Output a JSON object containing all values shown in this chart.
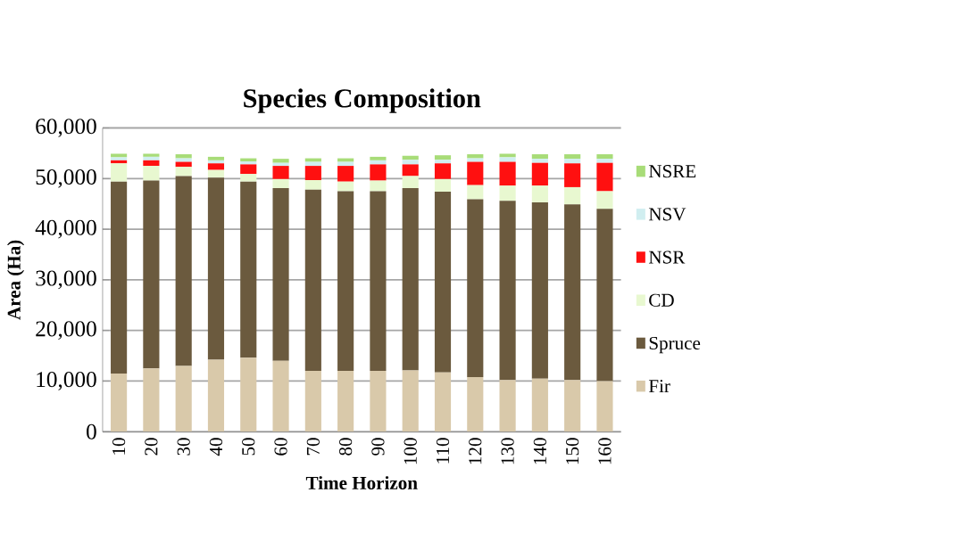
{
  "chart_data": {
    "type": "bar",
    "stacked": true,
    "title": "Species Composition",
    "xlabel": "Time Horizon",
    "ylabel": "Area (Ha)",
    "categories": [
      "10",
      "20",
      "30",
      "40",
      "50",
      "60",
      "70",
      "80",
      "90",
      "100",
      "110",
      "120",
      "130",
      "140",
      "150",
      "160"
    ],
    "series": [
      {
        "name": "Fir",
        "color": "#d9c9aa",
        "values": [
          11500,
          12500,
          13000,
          14200,
          14600,
          14000,
          12000,
          12000,
          12000,
          12100,
          11700,
          10800,
          10200,
          10500,
          10200,
          10000
        ]
      },
      {
        "name": "Spruce",
        "color": "#6b5a3e",
        "values": [
          37900,
          37100,
          37500,
          36000,
          34800,
          34100,
          35800,
          35500,
          35500,
          36000,
          35700,
          35100,
          35400,
          34800,
          34700,
          34000
        ]
      },
      {
        "name": "CD",
        "color": "#e8f8d0",
        "values": [
          3600,
          2900,
          1800,
          1500,
          1500,
          1800,
          1900,
          1900,
          2100,
          2400,
          2500,
          2800,
          3000,
          3300,
          3400,
          3500
        ]
      },
      {
        "name": "NSR",
        "color": "#ff1010",
        "values": [
          600,
          1100,
          1000,
          1300,
          1900,
          2600,
          2800,
          3100,
          3200,
          2300,
          3100,
          4600,
          4700,
          4500,
          4700,
          5600
        ]
      },
      {
        "name": "NSV",
        "color": "#d0eef0",
        "values": [
          600,
          700,
          700,
          600,
          600,
          600,
          800,
          800,
          800,
          900,
          700,
          700,
          900,
          800,
          900,
          800
        ]
      },
      {
        "name": "NSRE",
        "color": "#a8dc78",
        "values": [
          700,
          600,
          800,
          700,
          600,
          800,
          700,
          700,
          700,
          800,
          900,
          800,
          700,
          900,
          900,
          900
        ]
      }
    ],
    "ylim": [
      0,
      60000
    ],
    "yticks": [
      {
        "value": 0,
        "label": "0"
      },
      {
        "value": 10000,
        "label": "10,000"
      },
      {
        "value": 20000,
        "label": "20,000"
      },
      {
        "value": 30000,
        "label": "30,000"
      },
      {
        "value": 40000,
        "label": "40,000"
      },
      {
        "value": 50000,
        "label": "50,000"
      },
      {
        "value": 60000,
        "label": "60,000"
      }
    ],
    "grid": "y",
    "legend": "right"
  }
}
